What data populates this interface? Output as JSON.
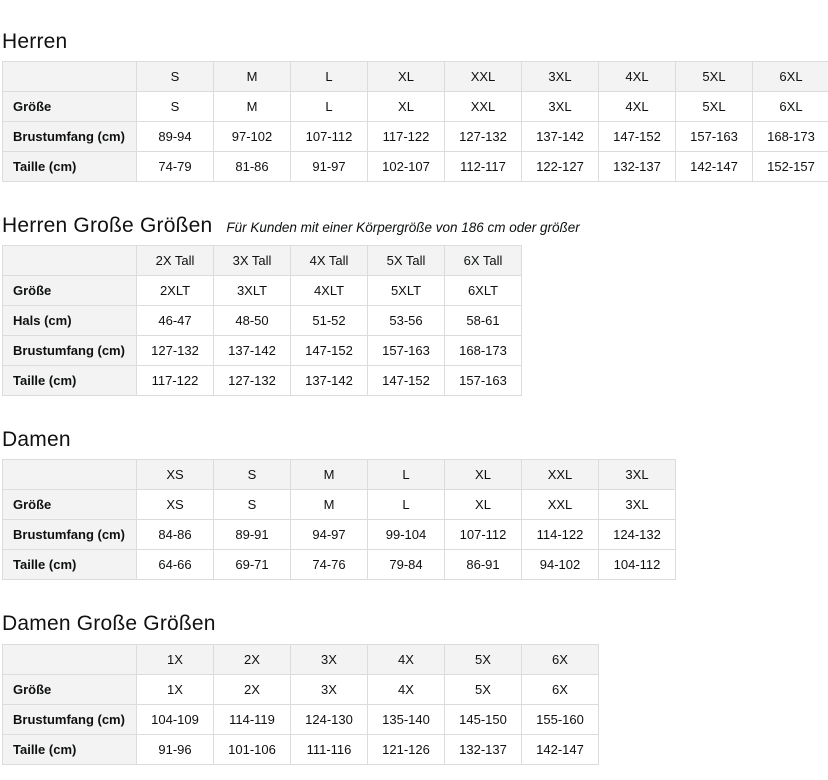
{
  "sections": [
    {
      "id": "herren",
      "title": "Herren",
      "subtitle": "",
      "columns": [
        "S",
        "M",
        "L",
        "XL",
        "XXL",
        "3XL",
        "4XL",
        "5XL",
        "6XL"
      ],
      "rows": [
        {
          "label": "Größe",
          "values": [
            "S",
            "M",
            "L",
            "XL",
            "XXL",
            "3XL",
            "4XL",
            "5XL",
            "6XL"
          ]
        },
        {
          "label": "Brustumfang (cm)",
          "values": [
            "89-94",
            "97-102",
            "107-112",
            "117-122",
            "127-132",
            "137-142",
            "147-152",
            "157-163",
            "168-173"
          ]
        },
        {
          "label": "Taille (cm)",
          "values": [
            "74-79",
            "81-86",
            "91-97",
            "102-107",
            "112-117",
            "122-127",
            "132-137",
            "142-147",
            "152-157"
          ]
        }
      ]
    },
    {
      "id": "herren-grosse-groessen",
      "title": "Herren Große Größen",
      "subtitle": "Für Kunden mit einer Körpergröße von 186 cm oder größer",
      "columns": [
        "2X Tall",
        "3X Tall",
        "4X Tall",
        "5X Tall",
        "6X Tall"
      ],
      "rows": [
        {
          "label": "Größe",
          "values": [
            "2XLT",
            "3XLT",
            "4XLT",
            "5XLT",
            "6XLT"
          ]
        },
        {
          "label": "Hals (cm)",
          "values": [
            "46-47",
            "48-50",
            "51-52",
            "53-56",
            "58-61"
          ]
        },
        {
          "label": "Brustumfang (cm)",
          "values": [
            "127-132",
            "137-142",
            "147-152",
            "157-163",
            "168-173"
          ]
        },
        {
          "label": "Taille (cm)",
          "values": [
            "117-122",
            "127-132",
            "137-142",
            "147-152",
            "157-163"
          ]
        }
      ]
    },
    {
      "id": "damen",
      "title": "Damen",
      "subtitle": "",
      "columns": [
        "XS",
        "S",
        "M",
        "L",
        "XL",
        "XXL",
        "3XL"
      ],
      "rows": [
        {
          "label": "Größe",
          "values": [
            "XS",
            "S",
            "M",
            "L",
            "XL",
            "XXL",
            "3XL"
          ]
        },
        {
          "label": "Brustumfang (cm)",
          "values": [
            "84-86",
            "89-91",
            "94-97",
            "99-104",
            "107-112",
            "114-122",
            "124-132"
          ]
        },
        {
          "label": "Taille (cm)",
          "values": [
            "64-66",
            "69-71",
            "74-76",
            "79-84",
            "86-91",
            "94-102",
            "104-112"
          ]
        }
      ]
    },
    {
      "id": "damen-grosse-groessen",
      "title": "Damen Große Größen",
      "subtitle": "",
      "columns": [
        "1X",
        "2X",
        "3X",
        "4X",
        "5X",
        "6X"
      ],
      "rows": [
        {
          "label": "Größe",
          "values": [
            "1X",
            "2X",
            "3X",
            "4X",
            "5X",
            "6X"
          ]
        },
        {
          "label": "Brustumfang (cm)",
          "values": [
            "104-109",
            "114-119",
            "124-130",
            "135-140",
            "145-150",
            "155-160"
          ]
        },
        {
          "label": "Taille (cm)",
          "values": [
            "91-96",
            "101-106",
            "111-116",
            "121-126",
            "132-137",
            "142-147"
          ]
        }
      ]
    }
  ],
  "layout_colors": {
    "header_bg": "#f3f3f3",
    "border": "#dcdcdc",
    "text": "#0f1111"
  },
  "dimensions": {
    "label_col_width": 134,
    "data_col_width": 77
  }
}
